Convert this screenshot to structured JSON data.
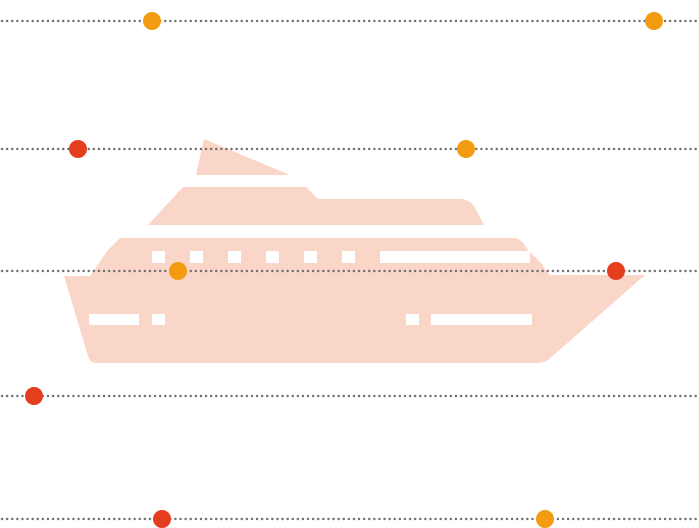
{
  "colors": {
    "background": "#ffffff",
    "ship": "#fad6c9",
    "dotted_line": "#6e6e6e",
    "dot_orange": "#f39c12",
    "dot_red": "#e53e1f"
  },
  "illustration": {
    "icon": "yacht-icon"
  },
  "rows": [
    {
      "dots": [
        {
          "color": "orange"
        },
        {
          "color": "orange"
        }
      ]
    },
    {
      "dots": [
        {
          "color": "red"
        },
        {
          "color": "orange"
        }
      ]
    },
    {
      "dots": [
        {
          "color": "orange"
        },
        {
          "color": "red"
        }
      ]
    },
    {
      "dots": [
        {
          "color": "red"
        }
      ]
    },
    {
      "dots": [
        {
          "color": "red"
        },
        {
          "color": "orange"
        }
      ]
    }
  ]
}
